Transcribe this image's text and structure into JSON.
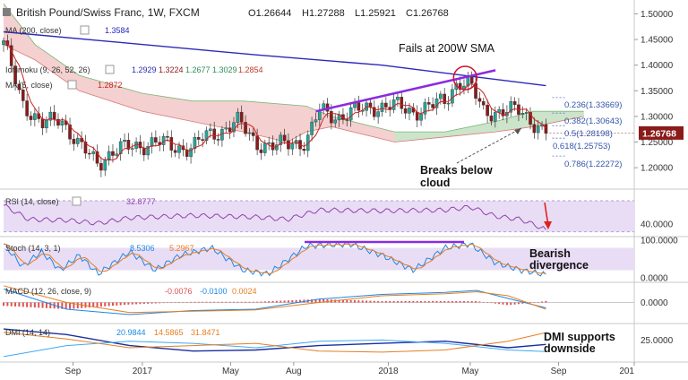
{
  "header": {
    "title": "British Pound/Swiss Franc, 1W, FXCM",
    "ohlc": [
      {
        "k": "O",
        "v": "1.26644"
      },
      {
        "k": "H",
        "v": "1.27288"
      },
      {
        "k": "L",
        "v": "1.25921"
      },
      {
        "k": "C",
        "v": "1.26768"
      }
    ]
  },
  "legends": {
    "ma200": {
      "label": "MA (200, close)",
      "value": "1.3584"
    },
    "ma5": {
      "label": "MA (5, close)",
      "value": "1.2872"
    },
    "ichimoku": {
      "label": "Ichimoku (9, 26, 52, 26)",
      "values": [
        "1.2929",
        "1.3224",
        "1.2677",
        "1.3029",
        "1.2854"
      ]
    },
    "rsi": {
      "label": "RSI (14, close)",
      "value": "32.8777"
    },
    "stoch": {
      "label": "Stoch (14, 3, 1)",
      "values": [
        "8.5306",
        "5.2967"
      ]
    },
    "macd": {
      "label": "MACD (12, 26, close, 9)",
      "values": [
        "-0.0076",
        "-0.0100",
        "0.0024"
      ]
    },
    "dmi": {
      "label": "DMI (14, 14)",
      "values": [
        "20.9844",
        "14.5865",
        "31.8471"
      ]
    }
  },
  "annotations": {
    "fails": "Fails at 200W SMA",
    "breaks": [
      "Breaks below",
      "cloud"
    ],
    "bearish": [
      "Bearish",
      "divergence"
    ],
    "dmi": [
      "DMI supports",
      "downside"
    ]
  },
  "fib_levels": [
    {
      "ratio": "0.236",
      "price": "1.33669",
      "value": 1.33669
    },
    {
      "ratio": "0.382",
      "price": "1.30643",
      "value": 1.30643
    },
    {
      "ratio": "0.5",
      "price": "1.28198",
      "value": 1.28198
    },
    {
      "ratio": "0.618",
      "price": "1.25753",
      "value": 1.25753
    },
    {
      "ratio": "0.786",
      "price": "1.22272",
      "value": 1.22272
    }
  ],
  "current_price": {
    "value": 1.26768,
    "label": "1.26768"
  },
  "x_axis_labels": [
    {
      "label": "Sep",
      "t": 0.11
    },
    {
      "label": "2017",
      "t": 0.22
    },
    {
      "label": "May",
      "t": 0.36
    },
    {
      "label": "Aug",
      "t": 0.46
    },
    {
      "label": "2018",
      "t": 0.61
    },
    {
      "label": "May",
      "t": 0.74
    },
    {
      "label": "Sep",
      "t": 0.88
    },
    {
      "label": "201",
      "t": 1.0
    }
  ],
  "colors": {
    "up": "#26a69a",
    "down": "#8b1a1a",
    "ma200": "#2a2ab8",
    "ma5": "#d02020",
    "cloud_bear": "#f2c8c8",
    "cloud_bull": "#c8e6c8",
    "accent": "#8a2be2",
    "rsi_band": "#e9ddf5",
    "macd_hist": "#e05050"
  },
  "chart_data": [
    {
      "type": "candlestick",
      "title": "British Pound/Swiss Franc, 1W, FXCM",
      "y_ticks": [
        "1.20000",
        "1.25000",
        "1.30000",
        "1.35000",
        "1.40000",
        "1.45000",
        "1.50000"
      ],
      "ylim": [
        1.16,
        1.52
      ],
      "keypoints": [
        {
          "t": 0.0,
          "v": 1.44
        },
        {
          "t": 0.03,
          "v": 1.33
        },
        {
          "t": 0.06,
          "v": 1.28
        },
        {
          "t": 0.09,
          "v": 1.3
        },
        {
          "t": 0.12,
          "v": 1.24
        },
        {
          "t": 0.15,
          "v": 1.21
        },
        {
          "t": 0.17,
          "v": 1.23
        },
        {
          "t": 0.2,
          "v": 1.24
        },
        {
          "t": 0.24,
          "v": 1.25
        },
        {
          "t": 0.27,
          "v": 1.24
        },
        {
          "t": 0.3,
          "v": 1.24
        },
        {
          "t": 0.32,
          "v": 1.26
        },
        {
          "t": 0.34,
          "v": 1.27
        },
        {
          "t": 0.37,
          "v": 1.29
        },
        {
          "t": 0.4,
          "v": 1.25
        },
        {
          "t": 0.43,
          "v": 1.24
        },
        {
          "t": 0.46,
          "v": 1.25
        },
        {
          "t": 0.48,
          "v": 1.25
        },
        {
          "t": 0.5,
          "v": 1.31
        },
        {
          "t": 0.53,
          "v": 1.3
        },
        {
          "t": 0.56,
          "v": 1.31
        },
        {
          "t": 0.59,
          "v": 1.32
        },
        {
          "t": 0.62,
          "v": 1.32
        },
        {
          "t": 0.65,
          "v": 1.31
        },
        {
          "t": 0.68,
          "v": 1.32
        },
        {
          "t": 0.7,
          "v": 1.33
        },
        {
          "t": 0.72,
          "v": 1.37
        },
        {
          "t": 0.74,
          "v": 1.36
        },
        {
          "t": 0.76,
          "v": 1.31
        },
        {
          "t": 0.79,
          "v": 1.31
        },
        {
          "t": 0.82,
          "v": 1.31
        },
        {
          "t": 0.84,
          "v": 1.29
        },
        {
          "t": 0.86,
          "v": 1.267
        }
      ],
      "ma200": [
        [
          0.0,
          1.465
        ],
        [
          0.4,
          1.42
        ],
        [
          0.6,
          1.4
        ],
        [
          0.86,
          1.36
        ]
      ],
      "cloud_top": [
        [
          0.0,
          1.52
        ],
        [
          0.05,
          1.44
        ],
        [
          0.12,
          1.38
        ],
        [
          0.22,
          1.345
        ],
        [
          0.3,
          1.33
        ],
        [
          0.38,
          1.33
        ],
        [
          0.48,
          1.32
        ],
        [
          0.52,
          1.3
        ],
        [
          0.62,
          1.27
        ],
        [
          0.7,
          1.27
        ],
        [
          0.78,
          1.29
        ],
        [
          0.84,
          1.31
        ],
        [
          0.92,
          1.31
        ]
      ],
      "cloud_bottom": [
        [
          0.0,
          1.44
        ],
        [
          0.05,
          1.41
        ],
        [
          0.12,
          1.35
        ],
        [
          0.22,
          1.31
        ],
        [
          0.3,
          1.29
        ],
        [
          0.38,
          1.27
        ],
        [
          0.45,
          1.25
        ],
        [
          0.48,
          1.27
        ],
        [
          0.52,
          1.28
        ],
        [
          0.62,
          1.25
        ],
        [
          0.7,
          1.26
        ],
        [
          0.78,
          1.27
        ],
        [
          0.84,
          1.28
        ],
        [
          0.92,
          1.3
        ]
      ],
      "trendline": [
        [
          0.495,
          1.31
        ],
        [
          0.78,
          1.39
        ]
      ],
      "circle_at": {
        "t": 0.732,
        "v": 1.375
      }
    },
    {
      "type": "line",
      "name": "RSI",
      "y_ticks": [
        "40.0000"
      ],
      "ylim": [
        25,
        85
      ],
      "keypoints": [
        [
          0.0,
          64
        ],
        [
          0.04,
          46
        ],
        [
          0.1,
          45
        ],
        [
          0.15,
          41
        ],
        [
          0.2,
          48
        ],
        [
          0.3,
          51
        ],
        [
          0.4,
          49
        ],
        [
          0.45,
          46
        ],
        [
          0.5,
          58
        ],
        [
          0.6,
          57
        ],
        [
          0.7,
          58
        ],
        [
          0.74,
          62
        ],
        [
          0.78,
          50
        ],
        [
          0.82,
          46
        ],
        [
          0.86,
          33
        ]
      ]
    },
    {
      "type": "line",
      "name": "Stoch",
      "y_ticks": [
        "100.0000",
        "0.0000"
      ],
      "ylim": [
        -10,
        110
      ],
      "keypoints": [
        [
          0.0,
          90
        ],
        [
          0.03,
          30
        ],
        [
          0.06,
          70
        ],
        [
          0.09,
          20
        ],
        [
          0.12,
          60
        ],
        [
          0.15,
          10
        ],
        [
          0.2,
          70
        ],
        [
          0.24,
          20
        ],
        [
          0.28,
          60
        ],
        [
          0.33,
          80
        ],
        [
          0.38,
          20
        ],
        [
          0.42,
          10
        ],
        [
          0.48,
          85
        ],
        [
          0.55,
          90
        ],
        [
          0.6,
          60
        ],
        [
          0.65,
          20
        ],
        [
          0.7,
          80
        ],
        [
          0.74,
          90
        ],
        [
          0.78,
          40
        ],
        [
          0.82,
          20
        ],
        [
          0.86,
          8
        ]
      ]
    },
    {
      "type": "bar+line",
      "name": "MACD",
      "y_ticks": [
        "0.0000"
      ],
      "ylim": [
        -0.03,
        0.03
      ],
      "macd_line": [
        [
          0.0,
          0.02
        ],
        [
          0.1,
          -0.01
        ],
        [
          0.2,
          -0.018
        ],
        [
          0.3,
          -0.012
        ],
        [
          0.4,
          -0.01
        ],
        [
          0.5,
          0.005
        ],
        [
          0.6,
          0.012
        ],
        [
          0.7,
          0.015
        ],
        [
          0.75,
          0.018
        ],
        [
          0.8,
          0.006
        ],
        [
          0.86,
          -0.008
        ]
      ],
      "signal_line": [
        [
          0.0,
          0.025
        ],
        [
          0.1,
          0.0
        ],
        [
          0.2,
          -0.015
        ],
        [
          0.3,
          -0.013
        ],
        [
          0.4,
          -0.011
        ],
        [
          0.5,
          0.0
        ],
        [
          0.6,
          0.01
        ],
        [
          0.7,
          0.013
        ],
        [
          0.75,
          0.016
        ],
        [
          0.8,
          0.01
        ],
        [
          0.86,
          -0.01
        ]
      ]
    },
    {
      "type": "line",
      "name": "DMI",
      "y_ticks": [
        "25.0000"
      ],
      "ylim": [
        5,
        40
      ],
      "adx": [
        [
          0.0,
          35
        ],
        [
          0.1,
          30
        ],
        [
          0.2,
          20
        ],
        [
          0.3,
          15
        ],
        [
          0.4,
          16
        ],
        [
          0.5,
          20
        ],
        [
          0.6,
          22
        ],
        [
          0.7,
          24
        ],
        [
          0.8,
          18
        ],
        [
          0.86,
          21
        ]
      ],
      "plus_di": [
        [
          0.0,
          10
        ],
        [
          0.1,
          20
        ],
        [
          0.2,
          24
        ],
        [
          0.3,
          22
        ],
        [
          0.4,
          18
        ],
        [
          0.5,
          24
        ],
        [
          0.6,
          25
        ],
        [
          0.7,
          22
        ],
        [
          0.8,
          16
        ],
        [
          0.86,
          14.6
        ]
      ],
      "minus_di": [
        [
          0.0,
          32
        ],
        [
          0.1,
          26
        ],
        [
          0.2,
          18
        ],
        [
          0.3,
          20
        ],
        [
          0.4,
          22
        ],
        [
          0.5,
          15
        ],
        [
          0.6,
          14
        ],
        [
          0.7,
          16
        ],
        [
          0.8,
          24
        ],
        [
          0.86,
          31.8
        ]
      ]
    }
  ]
}
